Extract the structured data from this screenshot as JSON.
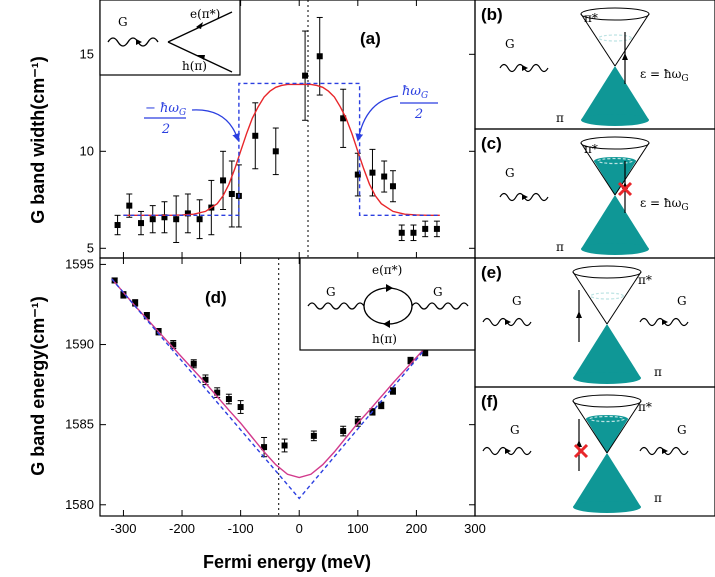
{
  "figure": {
    "x_axis_title": "Fermi energy (meV)",
    "colors": {
      "data": "#000000",
      "fit": "#e8262a",
      "step": "#2b3fe0",
      "dirac_fill": "#0f9796",
      "dirac_dashed": "#bde3e3",
      "cross": "#e8262a",
      "annotation": "#2b3fe0"
    }
  },
  "chart_data": [
    {
      "type": "scatter",
      "panel_label": "(a)",
      "ylabel": "G band width(cm⁻¹)",
      "xlim": [
        -340,
        300
      ],
      "ylim": [
        4.5,
        17.8
      ],
      "x_ticks": [
        -300,
        -200,
        -100,
        0,
        100,
        200,
        300
      ],
      "y_ticks": [
        5,
        10,
        15
      ],
      "y_tick_labels": [
        "5",
        "10",
        "15"
      ],
      "vertical_dotted_line_x": 15,
      "series": [
        {
          "role": "measured",
          "marker": "square",
          "points": [
            {
              "x": -310,
              "y": 6.2,
              "err": 0.5
            },
            {
              "x": -290,
              "y": 7.2,
              "err": 0.6
            },
            {
              "x": -270,
              "y": 6.3,
              "err": 0.6
            },
            {
              "x": -250,
              "y": 6.5,
              "err": 0.7
            },
            {
              "x": -230,
              "y": 6.6,
              "err": 0.8
            },
            {
              "x": -210,
              "y": 6.5,
              "err": 1.2
            },
            {
              "x": -190,
              "y": 6.8,
              "err": 1.0
            },
            {
              "x": -170,
              "y": 6.5,
              "err": 1.0
            },
            {
              "x": -150,
              "y": 7.1,
              "err": 1.4
            },
            {
              "x": -130,
              "y": 8.5,
              "err": 1.5
            },
            {
              "x": -115,
              "y": 7.8,
              "err": 1.7
            },
            {
              "x": -103,
              "y": 7.7,
              "err": 1.6
            },
            {
              "x": -75,
              "y": 10.8,
              "err": 1.7
            },
            {
              "x": -40,
              "y": 10.0,
              "err": 1.2
            },
            {
              "x": 10,
              "y": 13.9,
              "err": 2.3
            },
            {
              "x": 35,
              "y": 14.9,
              "err": 2.0
            },
            {
              "x": 75,
              "y": 11.7,
              "err": 1.5
            },
            {
              "x": 100,
              "y": 8.8,
              "err": 1.1
            },
            {
              "x": 125,
              "y": 8.9,
              "err": 1.2
            },
            {
              "x": 145,
              "y": 8.7,
              "err": 0.8
            },
            {
              "x": 160,
              "y": 8.2,
              "err": 0.8
            },
            {
              "x": 175,
              "y": 5.8,
              "err": 0.4
            },
            {
              "x": 195,
              "y": 5.8,
              "err": 0.4
            },
            {
              "x": 215,
              "y": 6.0,
              "err": 0.4
            },
            {
              "x": 235,
              "y": 6.0,
              "err": 0.4
            }
          ]
        },
        {
          "role": "fit",
          "style": "solid red",
          "x": [
            -300,
            -280,
            -260,
            -240,
            -220,
            -200,
            -180,
            -160,
            -140,
            -130,
            -120,
            -110,
            -100,
            -90,
            -80,
            -70,
            -60,
            -50,
            -40,
            -30,
            -20,
            -10,
            0,
            10,
            20,
            30,
            40,
            50,
            60,
            70,
            80,
            90,
            100,
            110,
            120,
            130,
            140,
            160,
            180,
            200,
            220,
            240
          ],
          "y": [
            6.7,
            6.7,
            6.7,
            6.7,
            6.7,
            6.72,
            6.76,
            6.9,
            7.3,
            7.7,
            8.3,
            9.1,
            10.0,
            10.9,
            11.7,
            12.3,
            12.8,
            13.1,
            13.3,
            13.4,
            13.45,
            13.45,
            13.45,
            13.45,
            13.45,
            13.4,
            13.3,
            13.1,
            12.8,
            12.3,
            11.7,
            10.9,
            10.0,
            9.1,
            8.3,
            7.7,
            7.3,
            6.9,
            6.76,
            6.72,
            6.7,
            6.7
          ]
        },
        {
          "role": "step",
          "style": "dashed blue",
          "x": [
            -300,
            -103,
            -103,
            103,
            103,
            240
          ],
          "y": [
            6.7,
            6.7,
            13.5,
            13.5,
            6.7,
            6.7
          ]
        }
      ],
      "annotations": {
        "left_fraction_num": "− ħω",
        "left_fraction_sub": "G",
        "left_fraction_den": "2",
        "right_fraction_num": "ħω",
        "right_fraction_sub": "G",
        "right_fraction_den": "2",
        "inset_g": "G",
        "inset_e": "e(π*)",
        "inset_h": "h(π)"
      }
    },
    {
      "type": "scatter",
      "panel_label": "(d)",
      "ylabel": "G band energy(cm⁻¹)",
      "xlim": [
        -340,
        300
      ],
      "ylim": [
        1579.3,
        1595.4
      ],
      "x_ticks": [
        -300,
        -200,
        -100,
        0,
        100,
        200,
        300
      ],
      "x_tick_labels": [
        "-300",
        "-200",
        "-100",
        "0",
        "100",
        "200",
        "300"
      ],
      "y_ticks": [
        1580,
        1585,
        1590,
        1595
      ],
      "y_tick_labels": [
        "1580",
        "1585",
        "1590",
        "1595"
      ],
      "vertical_dotted_line_x": -35,
      "series": [
        {
          "role": "measured",
          "marker": "square",
          "points": [
            {
              "x": -315,
              "y": 1594.0,
              "err": 0.15
            },
            {
              "x": -300,
              "y": 1593.1,
              "err": 0.2
            },
            {
              "x": -280,
              "y": 1592.6,
              "err": 0.2
            },
            {
              "x": -260,
              "y": 1591.8,
              "err": 0.2
            },
            {
              "x": -240,
              "y": 1590.8,
              "err": 0.2
            },
            {
              "x": -215,
              "y": 1590.0,
              "err": 0.25
            },
            {
              "x": -180,
              "y": 1588.8,
              "err": 0.25
            },
            {
              "x": -160,
              "y": 1587.8,
              "err": 0.3
            },
            {
              "x": -140,
              "y": 1587.0,
              "err": 0.3
            },
            {
              "x": -120,
              "y": 1586.6,
              "err": 0.3
            },
            {
              "x": -100,
              "y": 1586.1,
              "err": 0.4
            },
            {
              "x": -60,
              "y": 1583.6,
              "err": 0.6
            },
            {
              "x": -25,
              "y": 1583.7,
              "err": 0.4
            },
            {
              "x": 25,
              "y": 1584.3,
              "err": 0.3
            },
            {
              "x": 75,
              "y": 1584.6,
              "err": 0.3
            },
            {
              "x": 100,
              "y": 1585.2,
              "err": 0.3
            },
            {
              "x": 125,
              "y": 1585.8,
              "err": 0.2
            },
            {
              "x": 140,
              "y": 1586.2,
              "err": 0.2
            },
            {
              "x": 160,
              "y": 1587.1,
              "err": 0.2
            },
            {
              "x": 190,
              "y": 1589.0,
              "err": 0.2
            },
            {
              "x": 215,
              "y": 1589.5,
              "err": 0.2
            },
            {
              "x": 235,
              "y": 1590.1,
              "err": 0.2
            }
          ]
        },
        {
          "role": "fit",
          "style": "solid magenta",
          "x": [
            -320,
            -280,
            -240,
            -200,
            -160,
            -120,
            -100,
            -80,
            -60,
            -40,
            -20,
            0,
            20,
            40,
            60,
            80,
            100,
            120,
            160,
            200,
            240
          ],
          "y": [
            1594.1,
            1592.4,
            1590.8,
            1589.2,
            1587.6,
            1585.9,
            1585.1,
            1584.2,
            1583.3,
            1582.5,
            1581.9,
            1581.7,
            1581.9,
            1582.5,
            1583.3,
            1584.2,
            1585.1,
            1585.9,
            1587.6,
            1589.2,
            1590.8
          ]
        },
        {
          "role": "bare",
          "style": "dashed blue",
          "x": [
            -320,
            0,
            240
          ],
          "y": [
            1594.1,
            1580.4,
            1590.8
          ]
        }
      ],
      "annotations": {
        "inset_g_left": "G",
        "inset_g_right": "G",
        "inset_e": "e(π*)",
        "inset_h": "h(π)"
      }
    }
  ],
  "diagrams": [
    {
      "label": "(b)",
      "pi_star": "π*",
      "pi": "π",
      "g": "G",
      "eq": "ε = ħω",
      "eq_sub": "G",
      "filled": false,
      "cross": false
    },
    {
      "label": "(c)",
      "pi_star": "π*",
      "pi": "π",
      "g": "G",
      "eq": "ε = ħω",
      "eq_sub": "G",
      "filled": true,
      "cross": true
    },
    {
      "label": "(e)",
      "pi_star": "π*",
      "pi": "π",
      "g_left": "G",
      "g_right": "G",
      "filled": false,
      "cross": false
    },
    {
      "label": "(f)",
      "pi_star": "π*",
      "pi": "π",
      "g_left": "G",
      "g_right": "G",
      "filled": true,
      "cross": true
    }
  ]
}
